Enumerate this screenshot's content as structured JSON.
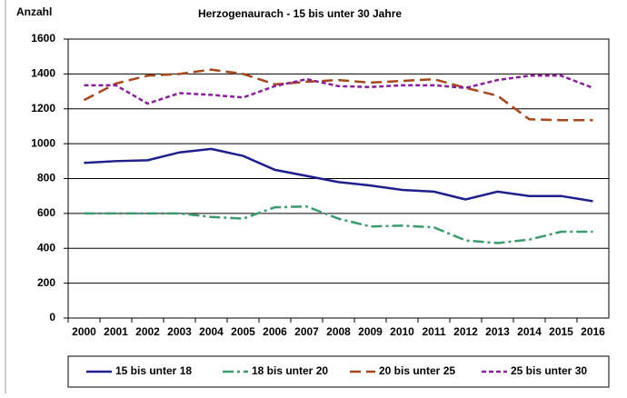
{
  "chart_data": {
    "type": "line",
    "title": "Herzogenaurach  - 15 bis unter 30 Jahre",
    "y_label": "Anzahl",
    "categories": [
      "2000",
      "2001",
      "2002",
      "2003",
      "2004",
      "2005",
      "2006",
      "2007",
      "2008",
      "2009",
      "2010",
      "2011",
      "2012",
      "2013",
      "2014",
      "2015",
      "2016"
    ],
    "series": [
      {
        "name": "15 bis unter 18",
        "color": "#1f1f8c",
        "dash": "none",
        "values": [
          890,
          900,
          905,
          950,
          970,
          930,
          850,
          815,
          780,
          760,
          735,
          725,
          680,
          725,
          700,
          700,
          670
        ]
      },
      {
        "name": "18 bis unter 20",
        "color": "#3c9a6e",
        "dash": "12 4 3 4",
        "values": [
          600,
          600,
          600,
          600,
          580,
          570,
          635,
          640,
          570,
          525,
          530,
          520,
          445,
          430,
          450,
          495,
          495
        ]
      },
      {
        "name": "20 bis unter 25",
        "color": "#a4481c",
        "dash": "12 6",
        "values": [
          1250,
          1345,
          1390,
          1400,
          1425,
          1400,
          1340,
          1355,
          1365,
          1350,
          1360,
          1370,
          1320,
          1275,
          1140,
          1135,
          1135
        ]
      },
      {
        "name": "25 bis unter 30",
        "color": "#8a1f9a",
        "dash": "5 3",
        "values": [
          1335,
          1335,
          1230,
          1290,
          1280,
          1265,
          1330,
          1370,
          1330,
          1325,
          1335,
          1335,
          1320,
          1365,
          1390,
          1390,
          1320
        ]
      }
    ],
    "ylim": [
      0,
      1600
    ],
    "yticks": [
      0,
      200,
      400,
      600,
      800,
      1000,
      1200,
      1400,
      1600
    ],
    "grid": true,
    "legend": "bottom"
  }
}
